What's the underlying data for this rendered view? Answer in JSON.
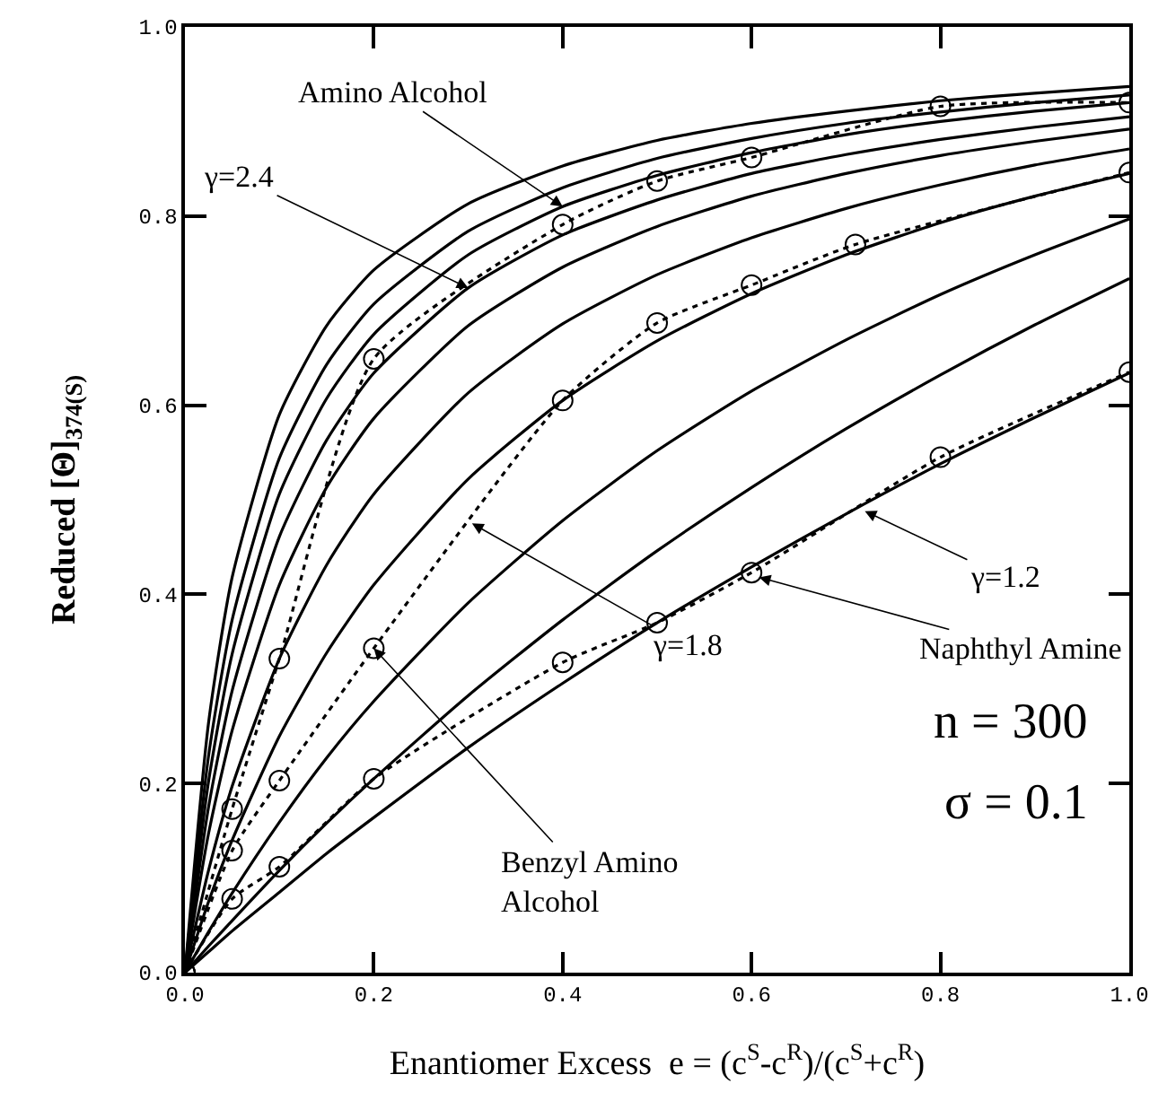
{
  "chart_data": {
    "type": "line",
    "xlabel": "Enantiomer Excess  e = (c$^{S}$-c$^{R}$)/(c$^{S}$+c$^{R}$)",
    "ylabel": "Reduced [Θ]$_{374(S)}$",
    "x": [
      0,
      0.025,
      0.05,
      0.1,
      0.15,
      0.2,
      0.3,
      0.4,
      0.5,
      0.6,
      0.7,
      0.8,
      0.9,
      1.0
    ],
    "series": [
      {
        "color": "#000000",
        "values": [
          0,
          0.264,
          0.418,
          0.59,
          0.684,
          0.743,
          0.813,
          0.853,
          0.88,
          0.898,
          0.911,
          0.922,
          0.93,
          0.937
        ]
      },
      {
        "color": "#000000",
        "values": [
          0,
          0.229,
          0.373,
          0.544,
          0.643,
          0.707,
          0.784,
          0.83,
          0.861,
          0.882,
          0.898,
          0.91,
          0.92,
          0.928
        ]
      },
      {
        "color": "#000000",
        "values": [
          0,
          0.202,
          0.337,
          0.506,
          0.607,
          0.675,
          0.759,
          0.81,
          0.843,
          0.867,
          0.886,
          0.9,
          0.911,
          0.92
        ]
      },
      {
        "color": "#000000",
        "values": [
          0,
          0.175,
          0.298,
          0.461,
          0.563,
          0.634,
          0.724,
          0.78,
          0.817,
          0.845,
          0.865,
          0.881,
          0.894,
          0.905
        ]
      },
      {
        "color": "#000000",
        "values": [
          0,
          0.147,
          0.256,
          0.41,
          0.513,
          0.586,
          0.684,
          0.746,
          0.789,
          0.821,
          0.845,
          0.864,
          0.879,
          0.892
        ]
      },
      {
        "color": "#000000",
        "values": [
          0,
          0.108,
          0.197,
          0.332,
          0.431,
          0.506,
          0.613,
          0.686,
          0.738,
          0.777,
          0.808,
          0.833,
          0.854,
          0.871
        ]
      },
      {
        "color": "#000000",
        "values": [
          0,
          0.075,
          0.14,
          0.25,
          0.338,
          0.41,
          0.522,
          0.605,
          0.668,
          0.718,
          0.759,
          0.793,
          0.821,
          0.845
        ]
      },
      {
        "color": "#000000",
        "values": [
          0,
          0.043,
          0.084,
          0.159,
          0.227,
          0.287,
          0.391,
          0.478,
          0.552,
          0.615,
          0.669,
          0.717,
          0.759,
          0.797
        ]
      },
      {
        "color": "#000000",
        "values": [
          0,
          0.028,
          0.055,
          0.108,
          0.158,
          0.205,
          0.293,
          0.373,
          0.446,
          0.513,
          0.575,
          0.632,
          0.685,
          0.734
        ]
      },
      {
        "color": "#000000",
        "values": [
          0,
          0.022,
          0.044,
          0.085,
          0.126,
          0.164,
          0.238,
          0.306,
          0.37,
          0.429,
          0.485,
          0.538,
          0.587,
          0.634
        ]
      },
      {
        "color": "#000000",
        "marker": "circle",
        "line_style": "dotted",
        "x": [
          0,
          0.05,
          0.1,
          0.2,
          0.4,
          0.5,
          0.6,
          0.8,
          1.0
        ],
        "values": [
          0,
          0.173,
          0.332,
          0.649,
          0.791,
          0.837,
          0.862,
          0.916,
          0.92
        ]
      },
      {
        "color": "#000000",
        "marker": "circle",
        "line_style": "dotted",
        "x": [
          0,
          0.05,
          0.1,
          0.2,
          0.4,
          0.5,
          0.6,
          0.71,
          1.0
        ],
        "values": [
          0,
          0.129,
          0.203,
          0.343,
          0.605,
          0.687,
          0.727,
          0.77,
          0.846
        ]
      },
      {
        "color": "#000000",
        "marker": "circle",
        "line_style": "dotted",
        "x": [
          0,
          0.05,
          0.1,
          0.2,
          0.4,
          0.5,
          0.6,
          0.8,
          1.0
        ],
        "values": [
          0,
          0.078,
          0.112,
          0.205,
          0.328,
          0.37,
          0.423,
          0.545,
          0.635
        ]
      }
    ],
    "marker": "none",
    "line_style": "solid",
    "xlim": [
      0,
      1.0
    ],
    "ylim": [
      0,
      1.0
    ],
    "xticks": [
      {
        "value": 0,
        "label": "0.0"
      },
      {
        "value": 0.2,
        "label": "0.2"
      },
      {
        "value": 0.4,
        "label": "0.4"
      },
      {
        "value": 0.6,
        "label": "0.6"
      },
      {
        "value": 0.8,
        "label": "0.8"
      },
      {
        "value": 1.0,
        "label": "1.0"
      }
    ],
    "yticks": [
      {
        "value": 0,
        "label": "0.0"
      },
      {
        "value": 0.2,
        "label": "0.2"
      },
      {
        "value": 0.4,
        "label": "0.4"
      },
      {
        "value": 0.6,
        "label": "0.6"
      },
      {
        "value": 0.8,
        "label": "0.8"
      },
      {
        "value": 1.0,
        "label": "1.0"
      }
    ],
    "annotations": [
      {
        "text": "Amino Alcohol",
        "x": 0.4,
        "y": 0.81
      },
      {
        "text": "γ=2.4",
        "x": 0.3,
        "y": 0.724
      },
      {
        "text": "γ=1.8",
        "x": 0.304,
        "y": 0.475
      },
      {
        "text": "Benzyl Amino\nAlcohol",
        "x": 0.2,
        "y": 0.343
      },
      {
        "text": "γ=1.2",
        "x": 0.72,
        "y": 0.488
      },
      {
        "text": "Naphthyl Amine",
        "x": 0.608,
        "y": 0.418
      },
      "n = 300",
      "σ = 0.1"
    ]
  }
}
